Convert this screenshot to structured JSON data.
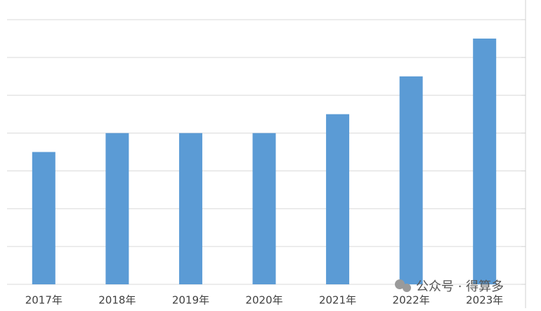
{
  "chart_data": {
    "type": "bar",
    "categories": [
      "2017年",
      "2018年",
      "2019年",
      "2020年",
      "2021年",
      "2022年",
      "2023年"
    ],
    "values": [
      3.5,
      4,
      4,
      4,
      4.5,
      5.5,
      6.5
    ],
    "color": "#5b9bd5",
    "ylim": [
      0,
      7
    ],
    "yticks": [
      0,
      1,
      2,
      3,
      4,
      5,
      6,
      7
    ],
    "grid": true
  },
  "watermark": "公众号 · 得算多"
}
